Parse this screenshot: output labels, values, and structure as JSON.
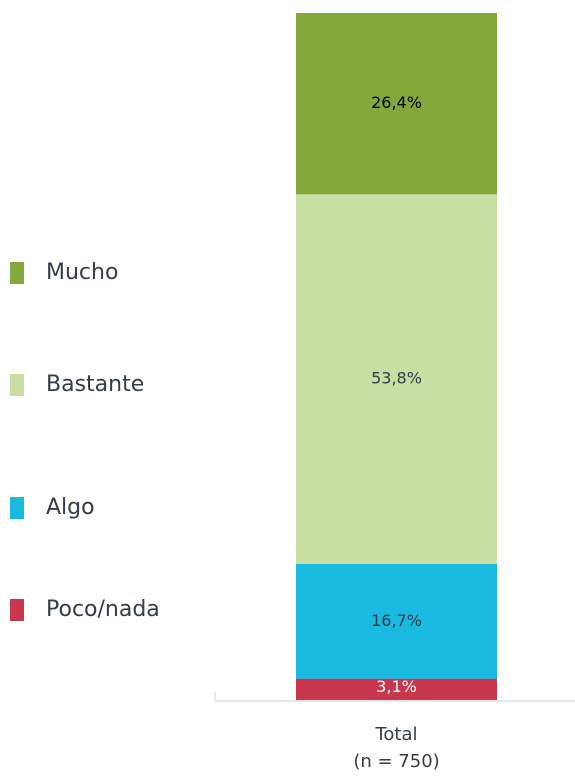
{
  "chart_data": {
    "type": "stacked_bar",
    "categories": [
      "Total\n(n = 750)"
    ],
    "series": [
      {
        "name": "Poco/nada",
        "color": "#c8374d",
        "values": [
          3.1
        ],
        "value_labels": [
          "3,1%"
        ]
      },
      {
        "name": "Algo",
        "color": "#1ab9e0",
        "values": [
          16.7
        ],
        "value_labels": [
          "16,7%"
        ]
      },
      {
        "name": "Bastante",
        "color": "#c8dea2",
        "values": [
          53.8
        ],
        "value_labels": [
          "53,8%"
        ]
      },
      {
        "name": "Mucho",
        "color": "#84a83b",
        "values": [
          26.4
        ],
        "value_labels": [
          "26,4%"
        ]
      }
    ],
    "ylim": [
      0,
      100
    ]
  }
}
